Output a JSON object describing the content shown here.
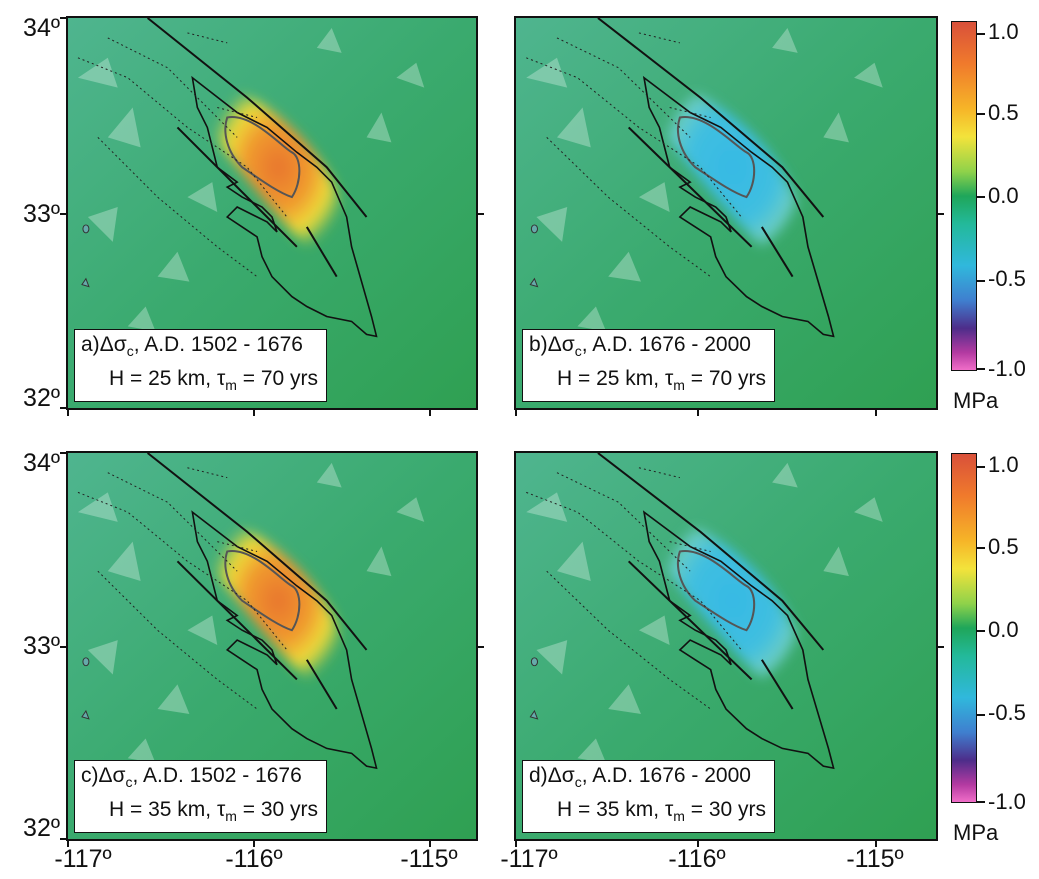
{
  "y_axis_labels": [
    "34º",
    "33º",
    "32º"
  ],
  "x_axis_labels": [
    "-117º",
    "-116º",
    "-115º"
  ],
  "panels": [
    {
      "letter": "a)",
      "stress": "Δσ",
      "stress_sub": "c",
      "period": ", A.D. 1502 - 1676",
      "line2_prefix": "H = 25 km, ",
      "tau": "τ",
      "tau_sub": "m",
      "line2_suffix": " = 70 yrs",
      "field": "positive"
    },
    {
      "letter": "b)",
      "stress": "Δσ",
      "stress_sub": "c",
      "period": ", A.D. 1676 - 2000",
      "line2_prefix": "H = 25 km, ",
      "tau": "τ",
      "tau_sub": "m",
      "line2_suffix": " = 70 yrs",
      "field": "negative"
    },
    {
      "letter": "c)",
      "stress": "Δσ",
      "stress_sub": "c",
      "period": ", A.D. 1502 - 1676",
      "line2_prefix": "H = 35 km, ",
      "tau": "τ",
      "tau_sub": "m",
      "line2_suffix": " = 30 yrs",
      "field": "positive"
    },
    {
      "letter": "d)",
      "stress": "Δσ",
      "stress_sub": "c",
      "period": ", A.D. 1676 - 2000",
      "line2_prefix": "H = 35 km, ",
      "tau": "τ",
      "tau_sub": "m",
      "line2_suffix": " = 30 yrs",
      "field": "negative"
    }
  ],
  "colorbar": {
    "tick_labels": [
      "1.0",
      "0.5",
      "0.0",
      "-0.5",
      "-1.0"
    ],
    "unit": "MPa",
    "range": [
      -1.0,
      1.0
    ]
  }
}
